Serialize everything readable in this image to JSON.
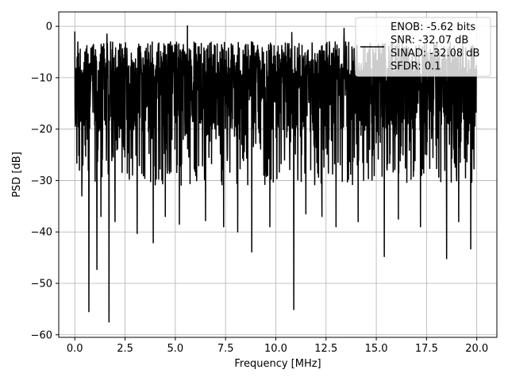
{
  "chart_data": {
    "type": "line",
    "xlabel": "Frequency [MHz]",
    "ylabel": "PSD [dB]",
    "xlim": [
      -0.8,
      21.0
    ],
    "ylim": [
      -60.5,
      2.8
    ],
    "x_ticks": [
      0.0,
      2.5,
      5.0,
      7.5,
      10.0,
      12.5,
      15.0,
      17.5,
      20.0
    ],
    "x_tick_labels": [
      "0.0",
      "2.5",
      "5.0",
      "7.5",
      "10.0",
      "12.5",
      "15.0",
      "17.5",
      "20.0"
    ],
    "y_ticks": [
      0,
      -10,
      -20,
      -30,
      -40,
      -50,
      -60
    ],
    "y_tick_labels": [
      "0",
      "−10",
      "−20",
      "−30",
      "−40",
      "−50",
      "−60"
    ],
    "grid": true,
    "legend_position": "top-right",
    "series": [
      {
        "color": "#000000",
        "x_range": [
          0.0,
          20.0
        ],
        "typical_range_db": [
          -25,
          -3
        ],
        "peaks": [
          {
            "x": 0.0,
            "y": -1.0
          },
          {
            "x": 5.6,
            "y": 0.1
          },
          {
            "x": 13.4,
            "y": -0.4
          },
          {
            "x": 1.6,
            "y": -1.5
          },
          {
            "x": 10.8,
            "y": -1.2
          }
        ],
        "deep_dips": [
          {
            "x": 0.35,
            "y": -33.0
          },
          {
            "x": 0.7,
            "y": -55.5
          },
          {
            "x": 1.1,
            "y": -47.3
          },
          {
            "x": 1.3,
            "y": -37.0
          },
          {
            "x": 1.7,
            "y": -57.5
          },
          {
            "x": 2.0,
            "y": -38.0
          },
          {
            "x": 3.1,
            "y": -40.3
          },
          {
            "x": 3.9,
            "y": -42.1
          },
          {
            "x": 4.5,
            "y": -37.0
          },
          {
            "x": 5.2,
            "y": -38.5
          },
          {
            "x": 6.5,
            "y": -37.8
          },
          {
            "x": 7.4,
            "y": -39.0
          },
          {
            "x": 8.1,
            "y": -40.0
          },
          {
            "x": 8.8,
            "y": -43.9
          },
          {
            "x": 9.7,
            "y": -39.0
          },
          {
            "x": 10.9,
            "y": -55.1
          },
          {
            "x": 11.5,
            "y": -36.5
          },
          {
            "x": 12.3,
            "y": -37.0
          },
          {
            "x": 13.0,
            "y": -39.0
          },
          {
            "x": 14.1,
            "y": -38.0
          },
          {
            "x": 15.4,
            "y": -44.8
          },
          {
            "x": 16.1,
            "y": -37.5
          },
          {
            "x": 17.2,
            "y": -39.0
          },
          {
            "x": 18.5,
            "y": -45.2
          },
          {
            "x": 19.1,
            "y": -38.0
          },
          {
            "x": 19.7,
            "y": -43.3
          }
        ]
      }
    ],
    "legend": {
      "lines": [
        "ENOB: -5.62 bits",
        "SNR: -32.07 dB",
        "SINAD: -32.08 dB",
        "SFDR: 0.1"
      ]
    }
  }
}
